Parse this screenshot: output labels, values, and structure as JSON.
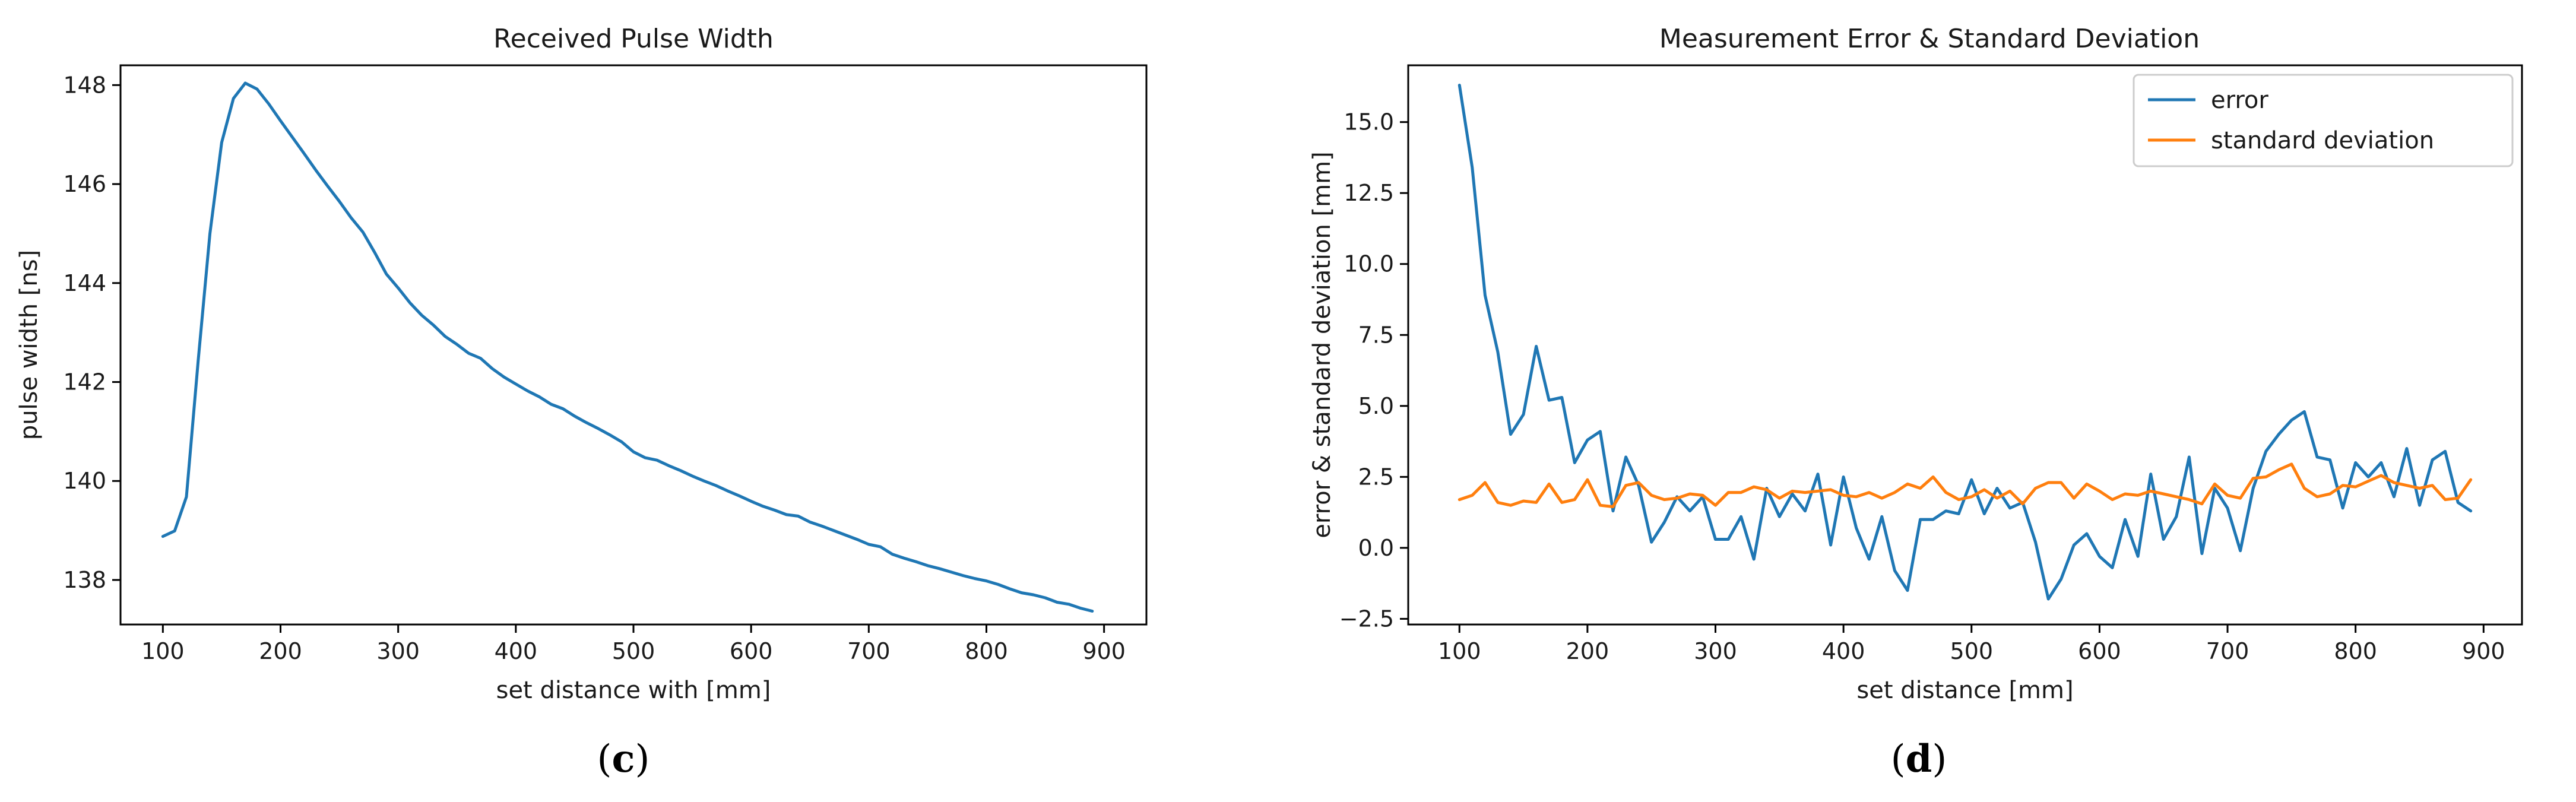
{
  "panels": [
    {
      "letter": "c"
    },
    {
      "letter": "d"
    }
  ],
  "chart_data": [
    {
      "type": "line",
      "title": "Received Pulse Width",
      "xlabel": "set distance with [mm]",
      "ylabel": "pulse width [ns]",
      "xlim": [
        64,
        936
      ],
      "ylim": [
        137.1,
        148.4
      ],
      "xticks": [
        100,
        200,
        300,
        400,
        500,
        600,
        700,
        800,
        900
      ],
      "yticks": [
        138,
        140,
        142,
        144,
        146,
        148
      ],
      "grid": false,
      "series": [
        {
          "color": "#1f77b4",
          "x": [
            100,
            110,
            120,
            130,
            140,
            150,
            160,
            170,
            180,
            190,
            200,
            210,
            220,
            230,
            240,
            250,
            260,
            270,
            280,
            290,
            300,
            310,
            320,
            330,
            340,
            350,
            360,
            370,
            380,
            390,
            400,
            410,
            420,
            430,
            440,
            450,
            460,
            470,
            480,
            490,
            500,
            510,
            520,
            530,
            540,
            550,
            560,
            570,
            580,
            590,
            600,
            610,
            620,
            630,
            640,
            650,
            660,
            670,
            680,
            690,
            700,
            710,
            720,
            730,
            740,
            750,
            760,
            770,
            780,
            790,
            800,
            810,
            820,
            830,
            840,
            850,
            860,
            870,
            880,
            890
          ],
          "y": [
            138.88,
            138.99,
            139.68,
            142.43,
            145.0,
            146.84,
            147.73,
            148.04,
            147.92,
            147.62,
            147.28,
            146.95,
            146.62,
            146.28,
            145.96,
            145.65,
            145.32,
            145.03,
            144.62,
            144.18,
            143.9,
            143.6,
            143.35,
            143.15,
            142.92,
            142.76,
            142.58,
            142.48,
            142.27,
            142.1,
            141.96,
            141.82,
            141.7,
            141.55,
            141.46,
            141.31,
            141.18,
            141.06,
            140.93,
            140.79,
            140.59,
            140.47,
            140.42,
            140.31,
            140.21,
            140.1,
            140.0,
            139.91,
            139.8,
            139.7,
            139.59,
            139.49,
            139.41,
            139.32,
            139.29,
            139.17,
            139.09,
            139.0,
            138.91,
            138.82,
            138.72,
            138.67,
            138.52,
            138.44,
            138.37,
            138.29,
            138.23,
            138.16,
            138.09,
            138.03,
            137.98,
            137.91,
            137.82,
            137.74,
            137.7,
            137.64,
            137.55,
            137.51,
            137.43,
            137.37
          ]
        }
      ]
    },
    {
      "type": "line",
      "title": "Measurement Error & Standard Deviation",
      "xlabel": "set distance [mm]",
      "ylabel": "error & standard deviation [mm]",
      "xlim": [
        60,
        930
      ],
      "ylim": [
        -2.7,
        17.0
      ],
      "xticks": [
        100,
        200,
        300,
        400,
        500,
        600,
        700,
        800,
        900
      ],
      "yticks": [
        -2.5,
        0.0,
        2.5,
        5.0,
        7.5,
        10.0,
        12.5,
        15.0
      ],
      "ytick_labels": [
        "−2.5",
        "0.0",
        "2.5",
        "5.0",
        "7.5",
        "10.0",
        "12.5",
        "15.0"
      ],
      "grid": false,
      "legend": "top-right",
      "series": [
        {
          "name": "error",
          "color": "#1f77b4",
          "x": [
            100,
            110,
            120,
            130,
            140,
            150,
            160,
            170,
            180,
            190,
            200,
            210,
            220,
            230,
            240,
            250,
            260,
            270,
            280,
            290,
            300,
            310,
            320,
            330,
            340,
            350,
            360,
            370,
            380,
            390,
            400,
            410,
            420,
            430,
            440,
            450,
            460,
            470,
            480,
            490,
            500,
            510,
            520,
            530,
            540,
            550,
            560,
            570,
            580,
            590,
            600,
            610,
            620,
            630,
            640,
            650,
            660,
            670,
            680,
            690,
            700,
            710,
            720,
            730,
            740,
            750,
            760,
            770,
            780,
            790,
            800,
            810,
            820,
            830,
            840,
            850,
            860,
            870,
            880,
            890
          ],
          "y": [
            16.3,
            13.4,
            8.9,
            6.9,
            4.0,
            4.7,
            7.1,
            5.2,
            5.3,
            3.0,
            3.8,
            4.1,
            1.3,
            3.2,
            2.2,
            0.2,
            0.9,
            1.8,
            1.3,
            1.8,
            0.3,
            0.3,
            1.1,
            -0.4,
            2.1,
            1.1,
            1.9,
            1.3,
            2.6,
            0.1,
            2.5,
            0.7,
            -0.4,
            1.1,
            -0.8,
            -1.5,
            1.0,
            1.0,
            1.3,
            1.2,
            2.4,
            1.2,
            2.1,
            1.4,
            1.6,
            0.2,
            -1.8,
            -1.1,
            0.1,
            0.5,
            -0.3,
            -0.7,
            1.0,
            -0.3,
            2.6,
            0.3,
            1.1,
            3.2,
            -0.2,
            2.1,
            1.4,
            -0.1,
            2.1,
            3.4,
            4.0,
            4.5,
            4.8,
            3.2,
            3.1,
            1.4,
            3.0,
            2.5,
            3.0,
            1.8,
            3.5,
            1.5,
            3.1,
            3.4,
            1.6,
            1.3
          ]
        },
        {
          "name": "standard deviation",
          "color": "#ff7f0e",
          "x": [
            100,
            110,
            120,
            130,
            140,
            150,
            160,
            170,
            180,
            190,
            200,
            210,
            220,
            230,
            240,
            250,
            260,
            270,
            280,
            290,
            300,
            310,
            320,
            330,
            340,
            350,
            360,
            370,
            380,
            390,
            400,
            410,
            420,
            430,
            440,
            450,
            460,
            470,
            480,
            490,
            500,
            510,
            520,
            530,
            540,
            550,
            560,
            570,
            580,
            590,
            600,
            610,
            620,
            630,
            640,
            650,
            660,
            670,
            680,
            690,
            700,
            710,
            720,
            730,
            740,
            750,
            760,
            770,
            780,
            790,
            800,
            810,
            820,
            830,
            840,
            850,
            860,
            870,
            880,
            890
          ],
          "y": [
            1.7,
            1.85,
            2.3,
            1.6,
            1.5,
            1.65,
            1.6,
            2.25,
            1.6,
            1.7,
            2.4,
            1.5,
            1.45,
            2.2,
            2.3,
            1.85,
            1.7,
            1.75,
            1.9,
            1.85,
            1.5,
            1.95,
            1.95,
            2.15,
            2.05,
            1.75,
            2.0,
            1.95,
            2.0,
            2.05,
            1.85,
            1.8,
            1.95,
            1.75,
            1.95,
            2.25,
            2.1,
            2.5,
            1.95,
            1.7,
            1.8,
            2.05,
            1.75,
            2.0,
            1.55,
            2.1,
            2.3,
            2.3,
            1.75,
            2.25,
            2.0,
            1.7,
            1.9,
            1.85,
            2.0,
            1.9,
            1.8,
            1.7,
            1.55,
            2.25,
            1.85,
            1.75,
            2.45,
            2.5,
            2.75,
            2.95,
            2.1,
            1.8,
            1.9,
            2.2,
            2.15,
            2.35,
            2.55,
            2.3,
            2.2,
            2.1,
            2.2,
            1.7,
            1.75,
            2.4
          ]
        }
      ]
    }
  ]
}
